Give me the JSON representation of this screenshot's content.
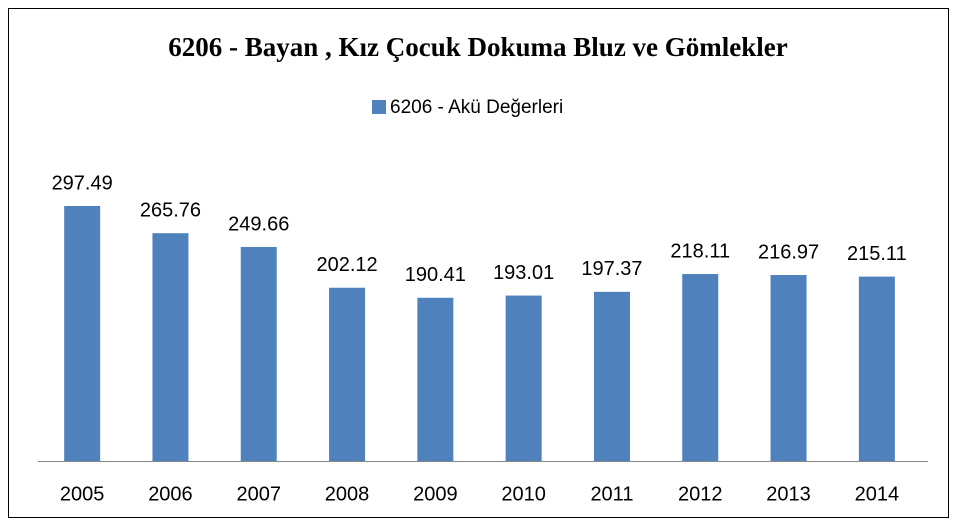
{
  "chart_data": {
    "type": "bar",
    "title": "6206 - Bayan , Kız Çocuk Dokuma Bluz ve Gömlekler",
    "categories": [
      "2005",
      "2006",
      "2007",
      "2008",
      "2009",
      "2010",
      "2011",
      "2012",
      "2013",
      "2014"
    ],
    "series": [
      {
        "name": "6206 - Akü Değerleri",
        "color": "#4f81bd",
        "values": [
          297.49,
          265.76,
          249.66,
          202.12,
          190.41,
          193.01,
          197.37,
          218.11,
          216.97,
          215.11
        ]
      }
    ],
    "legend": "top"
  }
}
